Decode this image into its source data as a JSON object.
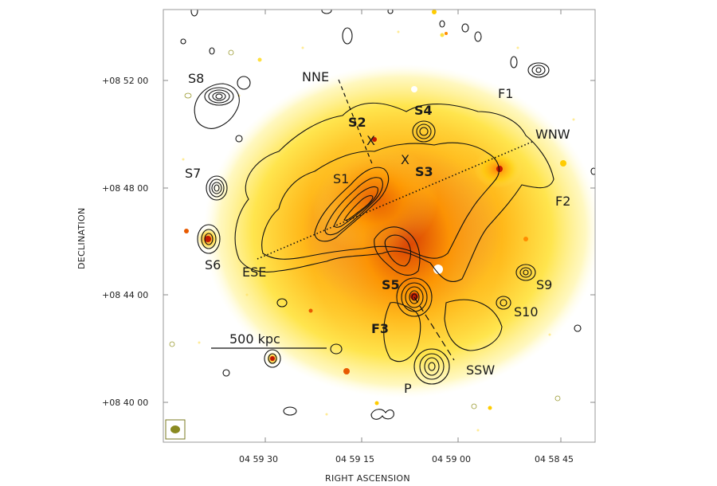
{
  "figure": {
    "x_axis_title": "RIGHT ASCENSION",
    "y_axis_title": "DECLINATION",
    "x_ticks": [
      "04 59 30",
      "04 59 15",
      "04 59 00",
      "04 58 45"
    ],
    "y_ticks": [
      "+08 52 00",
      "+08 48 00",
      "+08 44 00",
      "+08 40 00"
    ],
    "scale_bar_label": "500 kpc",
    "colormap": {
      "low": "#fffacd",
      "mid": "#ffd400",
      "high": "#c21a00"
    }
  },
  "labels": {
    "s1": "S1",
    "s2": "S2",
    "s3": "S3",
    "s4": "S4",
    "s5": "S5",
    "s6": "S6",
    "s7": "S7",
    "s8": "S8",
    "s9": "S9",
    "s10": "S10",
    "f1": "F1",
    "f2": "F2",
    "f3": "F3",
    "nne": "NNE",
    "wnw": "WNW",
    "ese": "ESE",
    "ssw": "SSW",
    "p": "P",
    "x1": "X",
    "x2": "X"
  }
}
